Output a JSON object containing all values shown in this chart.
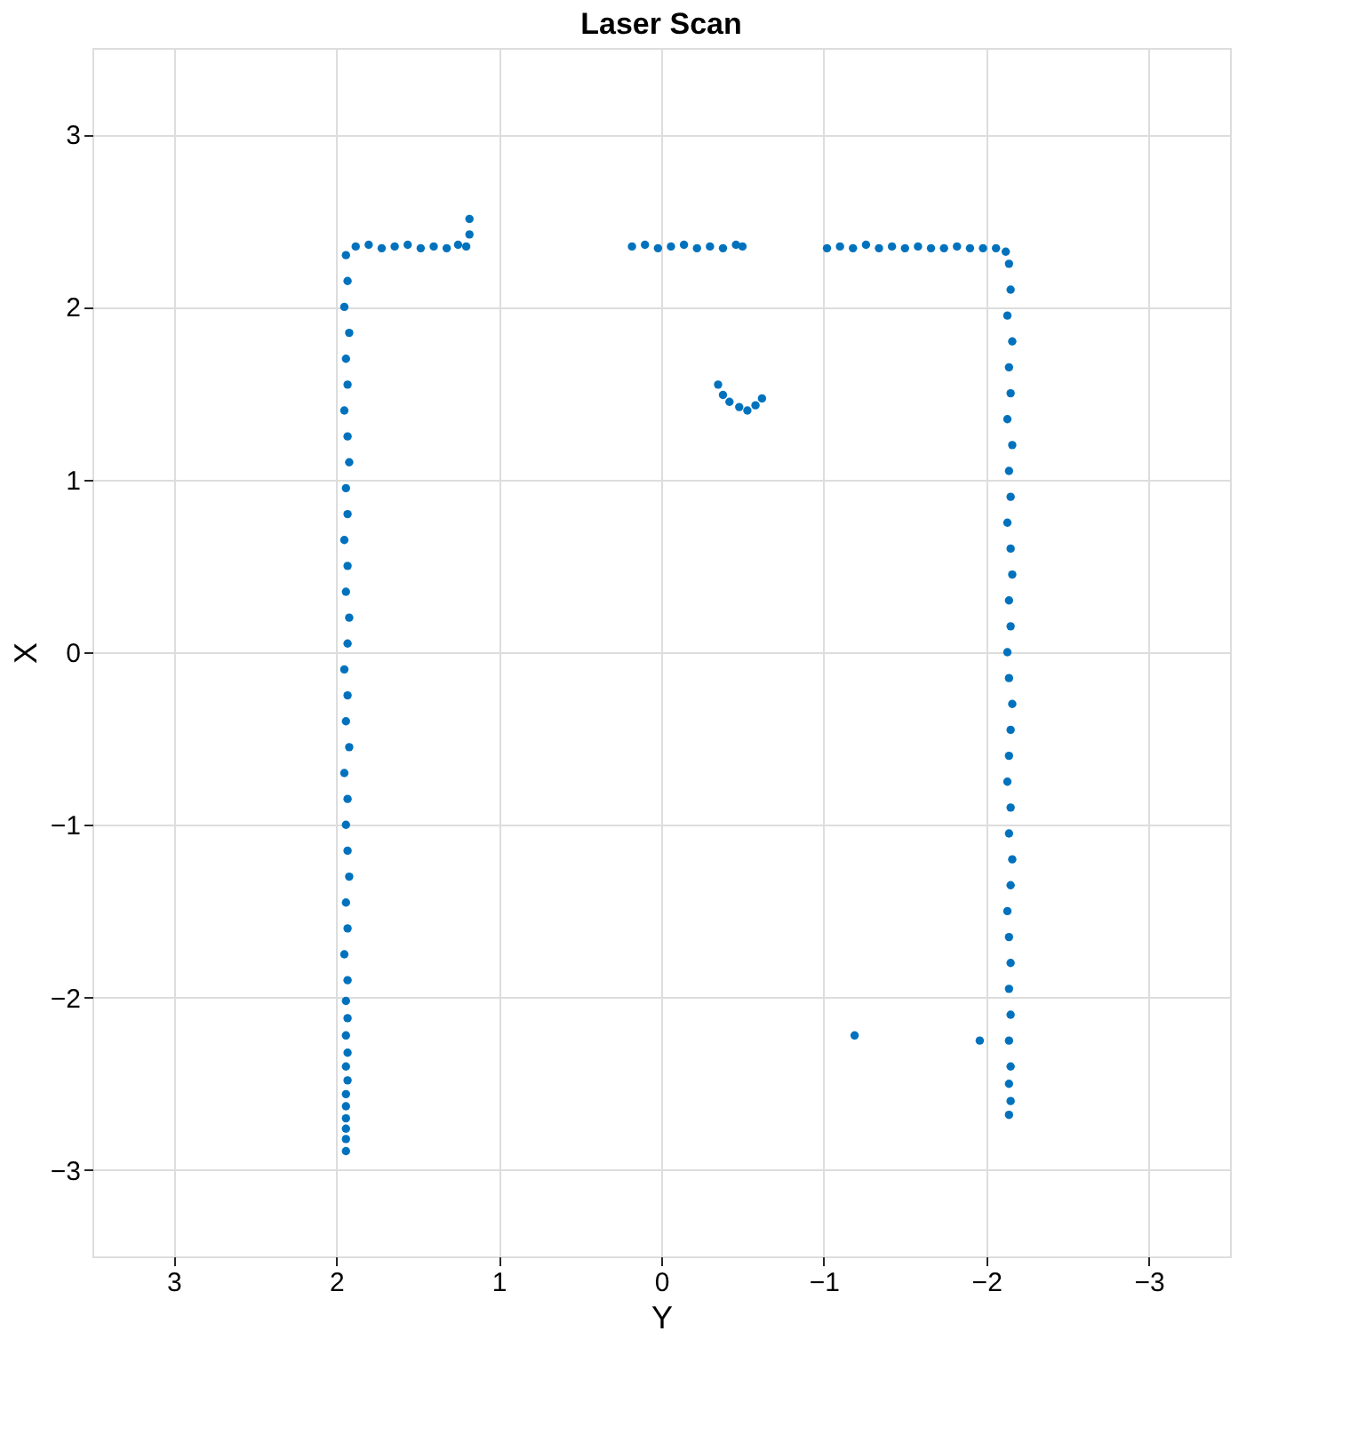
{
  "chart_data": {
    "type": "scatter",
    "title": "Laser Scan",
    "xlabel": "Y",
    "ylabel": "X",
    "xlim": [
      3.5,
      -3.5
    ],
    "xticks": [
      3,
      2,
      1,
      0,
      -1,
      -2,
      -3
    ],
    "ylim": [
      -3.5,
      3.5
    ],
    "yticks": [
      -3,
      -2,
      -1,
      0,
      1,
      2,
      3
    ],
    "grid": true,
    "marker": "circle",
    "series": [
      {
        "color": "#0072bd",
        "x": [
          1.94,
          1.93,
          1.95,
          1.92,
          1.94,
          1.93,
          1.95,
          1.93,
          1.92,
          1.94,
          1.93,
          1.95,
          1.93,
          1.94,
          1.92,
          1.93,
          1.95,
          1.93,
          1.94,
          1.92,
          1.95,
          1.93,
          1.94,
          1.93,
          1.92,
          1.94,
          1.93,
          1.95,
          1.93,
          1.94,
          1.93,
          1.94,
          1.93,
          1.94,
          1.93,
          1.94,
          1.94,
          1.94,
          1.94,
          1.94,
          1.94,
          1.88,
          1.8,
          1.72,
          1.64,
          1.56,
          1.48,
          1.4,
          1.32,
          1.25,
          1.2,
          1.18,
          1.18,
          0.18,
          0.1,
          0.02,
          -0.06,
          -0.14,
          -0.22,
          -0.3,
          -0.38,
          -0.46,
          -0.5,
          -1.02,
          -1.1,
          -1.18,
          -1.26,
          -1.34,
          -1.42,
          -1.5,
          -1.58,
          -1.66,
          -1.74,
          -1.82,
          -1.9,
          -1.98,
          -2.06,
          -2.12,
          -2.14,
          -2.15,
          -2.13,
          -2.16,
          -2.14,
          -2.15,
          -2.13,
          -2.16,
          -2.14,
          -2.15,
          -2.13,
          -2.15,
          -2.16,
          -2.14,
          -2.15,
          -2.13,
          -2.14,
          -2.16,
          -2.15,
          -2.14,
          -2.13,
          -2.15,
          -2.14,
          -2.16,
          -2.15,
          -2.13,
          -2.14,
          -2.15,
          -2.14,
          -2.15,
          -2.14,
          -2.15,
          -2.14,
          -2.15,
          -2.14,
          -1.19,
          -1.96,
          -0.35,
          -0.38,
          -0.42,
          -0.48,
          -0.53,
          -0.58,
          -0.62
        ],
        "values": [
          2.3,
          2.15,
          2.0,
          1.85,
          1.7,
          1.55,
          1.4,
          1.25,
          1.1,
          0.95,
          0.8,
          0.65,
          0.5,
          0.35,
          0.2,
          0.05,
          -0.1,
          -0.25,
          -0.4,
          -0.55,
          -0.7,
          -0.85,
          -1.0,
          -1.15,
          -1.3,
          -1.45,
          -1.6,
          -1.75,
          -1.9,
          -2.02,
          -2.12,
          -2.22,
          -2.32,
          -2.4,
          -2.48,
          -2.56,
          -2.63,
          -2.7,
          -2.76,
          -2.82,
          -2.89,
          2.35,
          2.36,
          2.34,
          2.35,
          2.36,
          2.34,
          2.35,
          2.34,
          2.36,
          2.35,
          2.42,
          2.51,
          2.35,
          2.36,
          2.34,
          2.35,
          2.36,
          2.34,
          2.35,
          2.34,
          2.36,
          2.35,
          2.34,
          2.35,
          2.34,
          2.36,
          2.34,
          2.35,
          2.34,
          2.35,
          2.34,
          2.34,
          2.35,
          2.34,
          2.34,
          2.34,
          2.32,
          2.25,
          2.1,
          1.95,
          1.8,
          1.65,
          1.5,
          1.35,
          1.2,
          1.05,
          0.9,
          0.75,
          0.6,
          0.45,
          0.3,
          0.15,
          0.0,
          -0.15,
          -0.3,
          -0.45,
          -0.6,
          -0.75,
          -0.9,
          -1.05,
          -1.2,
          -1.35,
          -1.5,
          -1.65,
          -1.8,
          -1.95,
          -2.1,
          -2.25,
          -2.4,
          -2.5,
          -2.6,
          -2.68,
          -2.22,
          -2.25,
          1.55,
          1.49,
          1.45,
          1.42,
          1.4,
          1.43,
          1.47
        ]
      }
    ]
  }
}
